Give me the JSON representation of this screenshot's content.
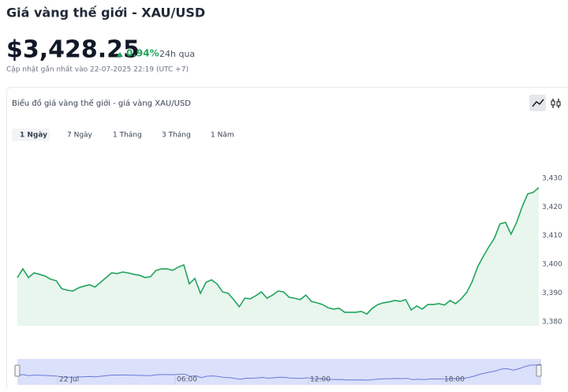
{
  "header": {
    "title": "Giá vàng thế giới - XAU/USD",
    "price": "$3,428.25",
    "change": "0.94%",
    "change_period": "24h qua",
    "updated": "Cập nhật gần nhất vào 22-07-2025 22:19 (UTC +7)"
  },
  "card": {
    "title": "Biểu đồ giá vàng thế giới - giá vàng XAU/USD",
    "tabs": [
      "1 Ngày",
      "7 Ngày",
      "1 Tháng",
      "3 Tháng",
      "1 Năm"
    ]
  },
  "chart_data": {
    "type": "area",
    "color": "#22a45d",
    "values": [
      3395.4,
      3398.4,
      3395.4,
      3397.0,
      3396.5,
      3395.9,
      3394.8,
      3394.3,
      3391.5,
      3391.0,
      3390.7,
      3391.8,
      3392.4,
      3392.9,
      3392.1,
      3393.7,
      3395.4,
      3397.0,
      3396.8,
      3397.3,
      3397.0,
      3396.5,
      3396.2,
      3395.4,
      3395.7,
      3397.9,
      3398.4,
      3398.4,
      3397.9,
      3399.0,
      3399.8,
      3393.2,
      3395.1,
      3389.9,
      3393.7,
      3394.6,
      3393.2,
      3390.4,
      3389.9,
      3387.7,
      3385.2,
      3388.2,
      3388.0,
      3389.1,
      3390.4,
      3388.2,
      3389.3,
      3390.7,
      3390.4,
      3388.5,
      3388.2,
      3387.7,
      3389.3,
      3387.1,
      3386.6,
      3386.0,
      3384.9,
      3384.4,
      3384.7,
      3383.3,
      3383.3,
      3383.3,
      3383.6,
      3382.7,
      3384.7,
      3386.0,
      3386.6,
      3386.9,
      3387.4,
      3387.1,
      3387.7,
      3384.1,
      3385.5,
      3384.4,
      3386.0,
      3386.0,
      3386.3,
      3385.8,
      3387.4,
      3386.3,
      3388.0,
      3390.2,
      3394.0,
      3399.2,
      3402.8,
      3406.1,
      3409.1,
      3414.1,
      3414.6,
      3410.5,
      3414.6,
      3420.1,
      3424.5,
      3425.1,
      3426.7
    ],
    "ylim": [
      3378.6,
      3433
    ],
    "yticks": [
      {
        "value": 3380,
        "label": "3,380"
      },
      {
        "value": 3390,
        "label": "3,390"
      },
      {
        "value": 3400,
        "label": "3,400"
      },
      {
        "value": 3410,
        "label": "3,410"
      },
      {
        "value": 3420,
        "label": "3,420"
      },
      {
        "value": 3430,
        "label": "3,430"
      }
    ],
    "navigator_labels": [
      "22 Jul",
      "06:00",
      "12:00",
      "18:00"
    ]
  }
}
